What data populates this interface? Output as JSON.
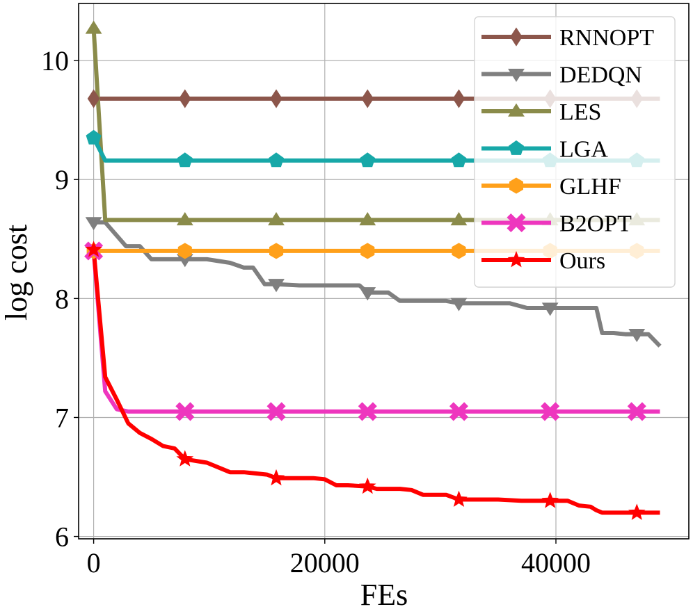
{
  "chart_data": {
    "type": "line",
    "title": "",
    "xlabel": "FEs",
    "ylabel": "log cost",
    "xlim": [
      -1300,
      51500
    ],
    "ylim": [
      5.98,
      10.48
    ],
    "xticks": [
      0,
      20000,
      40000
    ],
    "xtick_labels": [
      "0",
      "20000",
      "40000"
    ],
    "yticks": [
      6,
      7,
      8,
      9,
      10
    ],
    "ytick_labels": [
      "6",
      "7",
      "8",
      "9",
      "10"
    ],
    "grid": true,
    "legend_position": "top-right",
    "series": [
      {
        "name": "RNNOPT",
        "color": "#8c564b",
        "marker": "diamond",
        "x": [
          0,
          49000
        ],
        "y": [
          9.68,
          9.68
        ],
        "marker_x": [
          0,
          7900,
          15800,
          23700,
          31600,
          39500,
          47000
        ]
      },
      {
        "name": "DEDQN",
        "color": "#7f7f7f",
        "marker": "triangle-down",
        "x": [
          0,
          1000,
          2800,
          4000,
          5000,
          7900,
          9800,
          11800,
          13000,
          13800,
          14800,
          15800,
          17800,
          18800,
          20000,
          22000,
          23000,
          23700,
          25500,
          26500,
          28500,
          30500,
          31600,
          33000,
          35000,
          36000,
          37500,
          38500,
          39500,
          41000,
          42000,
          43000,
          43500,
          44000,
          45000,
          46000,
          47000,
          48000,
          49000
        ],
        "y": [
          8.64,
          8.64,
          8.44,
          8.44,
          8.33,
          8.33,
          8.33,
          8.3,
          8.26,
          8.26,
          8.12,
          8.12,
          8.11,
          8.11,
          8.11,
          8.11,
          8.11,
          8.05,
          8.05,
          7.98,
          7.98,
          7.98,
          7.96,
          7.96,
          7.96,
          7.96,
          7.92,
          7.92,
          7.92,
          7.92,
          7.92,
          7.92,
          7.92,
          7.71,
          7.71,
          7.7,
          7.7,
          7.7,
          7.6
        ],
        "marker_x": [
          0,
          7900,
          15800,
          23700,
          31600,
          39500,
          47000
        ]
      },
      {
        "name": "LES",
        "color": "#8a8b4a",
        "marker": "triangle-up",
        "x": [
          0,
          1000,
          49000
        ],
        "y": [
          10.27,
          8.66,
          8.66
        ],
        "marker_x": [
          0,
          7900,
          15800,
          23700,
          31600,
          39500,
          47000
        ]
      },
      {
        "name": "LGA",
        "color": "#17a8a8",
        "marker": "pentagon",
        "x": [
          0,
          1000,
          49000
        ],
        "y": [
          9.35,
          9.16,
          9.16
        ],
        "marker_x": [
          0,
          7900,
          15800,
          23700,
          31600,
          39500,
          47000
        ]
      },
      {
        "name": "GLHF",
        "color": "#ffa01a",
        "marker": "hexagon",
        "x": [
          0,
          49000
        ],
        "y": [
          8.4,
          8.4
        ],
        "marker_x": [
          0,
          7900,
          15800,
          23700,
          31600,
          39500,
          47000
        ]
      },
      {
        "name": "B2OPT",
        "color": "#ee36be",
        "marker": "x-filled",
        "x": [
          0,
          1000,
          2000,
          3000,
          49000
        ],
        "y": [
          8.4,
          7.22,
          7.07,
          7.05,
          7.05
        ],
        "marker_x": [
          0,
          7900,
          15800,
          23700,
          31600,
          39500,
          47000
        ]
      },
      {
        "name": "Ours",
        "color": "#ff0000",
        "marker": "star",
        "x": [
          0,
          1000,
          2000,
          3000,
          4000,
          5000,
          6000,
          7000,
          7900,
          9800,
          11800,
          13000,
          14000,
          15000,
          15800,
          17000,
          18000,
          19000,
          20000,
          21000,
          22000,
          23700,
          24500,
          25500,
          26500,
          27500,
          28500,
          29500,
          30500,
          31600,
          33000,
          35000,
          37000,
          39000,
          40000,
          41000,
          42000,
          43000,
          43500,
          44000,
          45000,
          46000,
          47000,
          48000,
          49000
        ],
        "y": [
          8.41,
          7.34,
          7.15,
          6.95,
          6.87,
          6.82,
          6.76,
          6.74,
          6.65,
          6.62,
          6.54,
          6.54,
          6.53,
          6.52,
          6.49,
          6.49,
          6.49,
          6.49,
          6.48,
          6.43,
          6.43,
          6.42,
          6.4,
          6.4,
          6.4,
          6.39,
          6.35,
          6.35,
          6.35,
          6.31,
          6.31,
          6.31,
          6.3,
          6.3,
          6.3,
          6.3,
          6.26,
          6.25,
          6.22,
          6.2,
          6.2,
          6.2,
          6.2,
          6.2,
          6.2
        ],
        "marker_x": [
          0,
          7900,
          15800,
          23700,
          31600,
          39500,
          47000
        ]
      }
    ]
  }
}
